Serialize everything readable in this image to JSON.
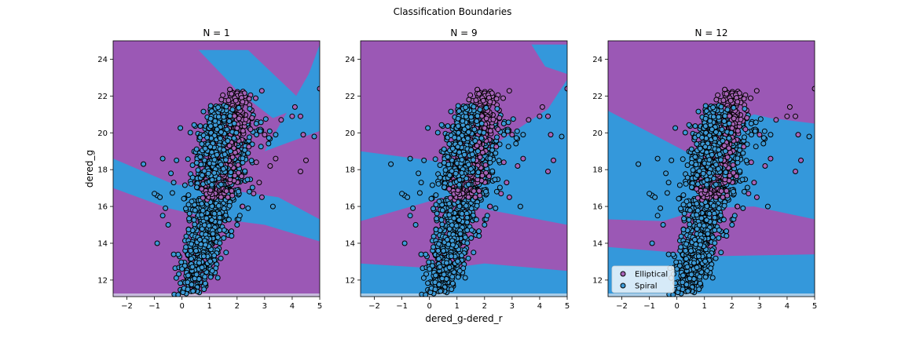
{
  "figure_title": "Classification Boundaries",
  "chart_data": [
    {
      "type": "scatter",
      "title": "N = 1",
      "xlabel": "",
      "ylabel": "dered_g",
      "xlim": [
        -2.5,
        5
      ],
      "ylim": [
        11.1,
        25
      ],
      "xticks": [
        -2,
        -1,
        0,
        1,
        2,
        3,
        4,
        5
      ],
      "yticks": [
        12,
        14,
        16,
        18,
        20,
        22,
        24
      ],
      "grid": false,
      "background": "decision regions (purple = Elliptical, blue = Spiral)",
      "region_overlay": [
        {
          "points": [
            [
              0.6,
              24.5
            ],
            [
              2.4,
              24.5
            ],
            [
              4.5,
              21.5
            ],
            [
              3.3,
              20.8
            ],
            [
              2.0,
              22.3
            ]
          ]
        },
        {
          "points": [
            [
              3.0,
              19.0
            ],
            [
              5.0,
              20.1
            ],
            [
              5.0,
              24.8
            ],
            [
              4.6,
              23.2
            ]
          ]
        },
        {
          "points": [
            [
              -2.5,
              18.6
            ],
            [
              -0.3,
              17.2
            ],
            [
              1.2,
              17.0
            ],
            [
              3.5,
              16.5
            ],
            [
              5.0,
              15.3
            ],
            [
              5.0,
              14.1
            ],
            [
              3.0,
              15.0
            ],
            [
              1.0,
              15.4
            ],
            [
              -0.5,
              15.9
            ],
            [
              -2.5,
              17.0
            ]
          ]
        }
      ]
    },
    {
      "type": "scatter",
      "title": "N = 9",
      "xlabel": "dered_g-dered_r",
      "ylabel": "",
      "xlim": [
        -2.5,
        5
      ],
      "ylim": [
        11.1,
        25
      ],
      "xticks": [
        -2,
        -1,
        0,
        1,
        2,
        3,
        4,
        5
      ],
      "yticks": [
        12,
        14,
        16,
        18,
        20,
        22,
        24
      ],
      "grid": false,
      "region_overlay": [
        {
          "points": [
            [
              -2.5,
              19.0
            ],
            [
              0.0,
              18.5
            ],
            [
              1.2,
              18.2
            ],
            [
              4.3,
              21.3
            ],
            [
              5.0,
              22.9
            ],
            [
              5.0,
              15.0
            ],
            [
              1.5,
              16.0
            ],
            [
              0.5,
              16.5
            ],
            [
              -2.5,
              15.2
            ]
          ]
        },
        {
          "points": [
            [
              3.7,
              24.8
            ],
            [
              5.0,
              24.8
            ],
            [
              5.0,
              23.2
            ],
            [
              4.2,
              23.6
            ]
          ]
        },
        {
          "points": [
            [
              -2.5,
              12.9
            ],
            [
              0.5,
              12.6
            ],
            [
              2.0,
              12.9
            ],
            [
              5.0,
              12.5
            ],
            [
              5.0,
              11.1
            ],
            [
              -2.5,
              11.1
            ]
          ]
        }
      ]
    },
    {
      "type": "scatter",
      "title": "N = 12",
      "xlabel": "",
      "ylabel": "",
      "xlim": [
        -2.5,
        5
      ],
      "ylim": [
        11.1,
        25
      ],
      "xticks": [
        -2,
        -1,
        0,
        1,
        2,
        3,
        4,
        5
      ],
      "yticks": [
        12,
        14,
        16,
        18,
        20,
        22,
        24
      ],
      "grid": false,
      "legend": {
        "placement": "lower-left",
        "entries": [
          "Elliptical",
          "Spiral"
        ]
      },
      "region_overlay": [
        {
          "points": [
            [
              -2.5,
              21.2
            ],
            [
              0.3,
              19.0
            ],
            [
              1.3,
              19.0
            ],
            [
              2.5,
              20.8
            ],
            [
              2.8,
              21.0
            ],
            [
              3.4,
              20.8
            ],
            [
              5.0,
              20.5
            ],
            [
              5.0,
              15.3
            ],
            [
              2.8,
              16.0
            ],
            [
              1.0,
              15.9
            ],
            [
              -0.5,
              15.2
            ],
            [
              -2.5,
              15.3
            ]
          ]
        },
        {
          "points": [
            [
              -2.5,
              13.8
            ],
            [
              1.5,
              13.3
            ],
            [
              5.0,
              13.4
            ],
            [
              5.0,
              11.1
            ],
            [
              -2.5,
              11.1
            ]
          ]
        }
      ]
    }
  ],
  "classes": [
    {
      "name": "Elliptical",
      "color": "#a663b6"
    },
    {
      "name": "Spiral",
      "color": "#3d9ad6"
    }
  ],
  "region_colors": {
    "Elliptical": "#9b58b5",
    "Spiral": "#3498db"
  },
  "outliers": [
    {
      "x": -1.4,
      "y": 18.3,
      "c": 1
    },
    {
      "x": -0.7,
      "y": 18.6,
      "c": 1
    },
    {
      "x": -0.9,
      "y": 16.6,
      "c": 1
    },
    {
      "x": -1.0,
      "y": 16.7,
      "c": 1
    },
    {
      "x": -0.8,
      "y": 16.5,
      "c": 1
    },
    {
      "x": -0.6,
      "y": 15.9,
      "c": 1
    },
    {
      "x": -0.9,
      "y": 14.0,
      "c": 1
    },
    {
      "x": -0.5,
      "y": 15.0,
      "c": 1
    },
    {
      "x": -0.7,
      "y": 15.5,
      "c": 1
    },
    {
      "x": -0.3,
      "y": 17.3,
      "c": 1
    },
    {
      "x": -0.2,
      "y": 18.5,
      "c": 1
    },
    {
      "x": -0.4,
      "y": 17.8,
      "c": 1
    },
    {
      "x": 4.1,
      "y": 21.4,
      "c": 0
    },
    {
      "x": 4.3,
      "y": 20.9,
      "c": 0
    },
    {
      "x": 3.6,
      "y": 20.7,
      "c": 0
    },
    {
      "x": 4.0,
      "y": 20.9,
      "c": 0
    },
    {
      "x": 4.4,
      "y": 19.9,
      "c": 0
    },
    {
      "x": 4.8,
      "y": 19.8,
      "c": 1
    },
    {
      "x": 5.0,
      "y": 22.4,
      "c": 0
    },
    {
      "x": 3.4,
      "y": 18.6,
      "c": 0
    },
    {
      "x": 3.2,
      "y": 18.2,
      "c": 0
    },
    {
      "x": 4.3,
      "y": 17.9,
      "c": 0
    },
    {
      "x": 4.5,
      "y": 18.5,
      "c": 0
    },
    {
      "x": 2.7,
      "y": 18.4,
      "c": 0
    },
    {
      "x": 3.0,
      "y": 19.9,
      "c": 0
    },
    {
      "x": 3.4,
      "y": 19.9,
      "c": 1
    },
    {
      "x": 2.8,
      "y": 17.3,
      "c": 0
    },
    {
      "x": 2.6,
      "y": 16.7,
      "c": 0
    },
    {
      "x": 2.7,
      "y": 20.5,
      "c": 1
    },
    {
      "x": 2.4,
      "y": 18.9,
      "c": 1
    },
    {
      "x": 2.2,
      "y": 16.0,
      "c": 0
    },
    {
      "x": 2.4,
      "y": 15.9,
      "c": 1
    },
    {
      "x": 2.1,
      "y": 15.5,
      "c": 1
    },
    {
      "x": 2.0,
      "y": 15.0,
      "c": 1
    },
    {
      "x": 1.6,
      "y": 13.5,
      "c": 1
    },
    {
      "x": 1.8,
      "y": 14.4,
      "c": 1
    },
    {
      "x": 1.2,
      "y": 12.4,
      "c": 1
    },
    {
      "x": 1.1,
      "y": 12.5,
      "c": 1
    },
    {
      "x": 0.4,
      "y": 11.4,
      "c": 1
    },
    {
      "x": 0.8,
      "y": 11.5,
      "c": 1
    },
    {
      "x": 0.0,
      "y": 12.6,
      "c": 1
    },
    {
      "x": -0.3,
      "y": 13.4,
      "c": 1
    },
    {
      "x": 2.9,
      "y": 16.5,
      "c": 0
    },
    {
      "x": 3.3,
      "y": 16.0,
      "c": 1
    }
  ]
}
